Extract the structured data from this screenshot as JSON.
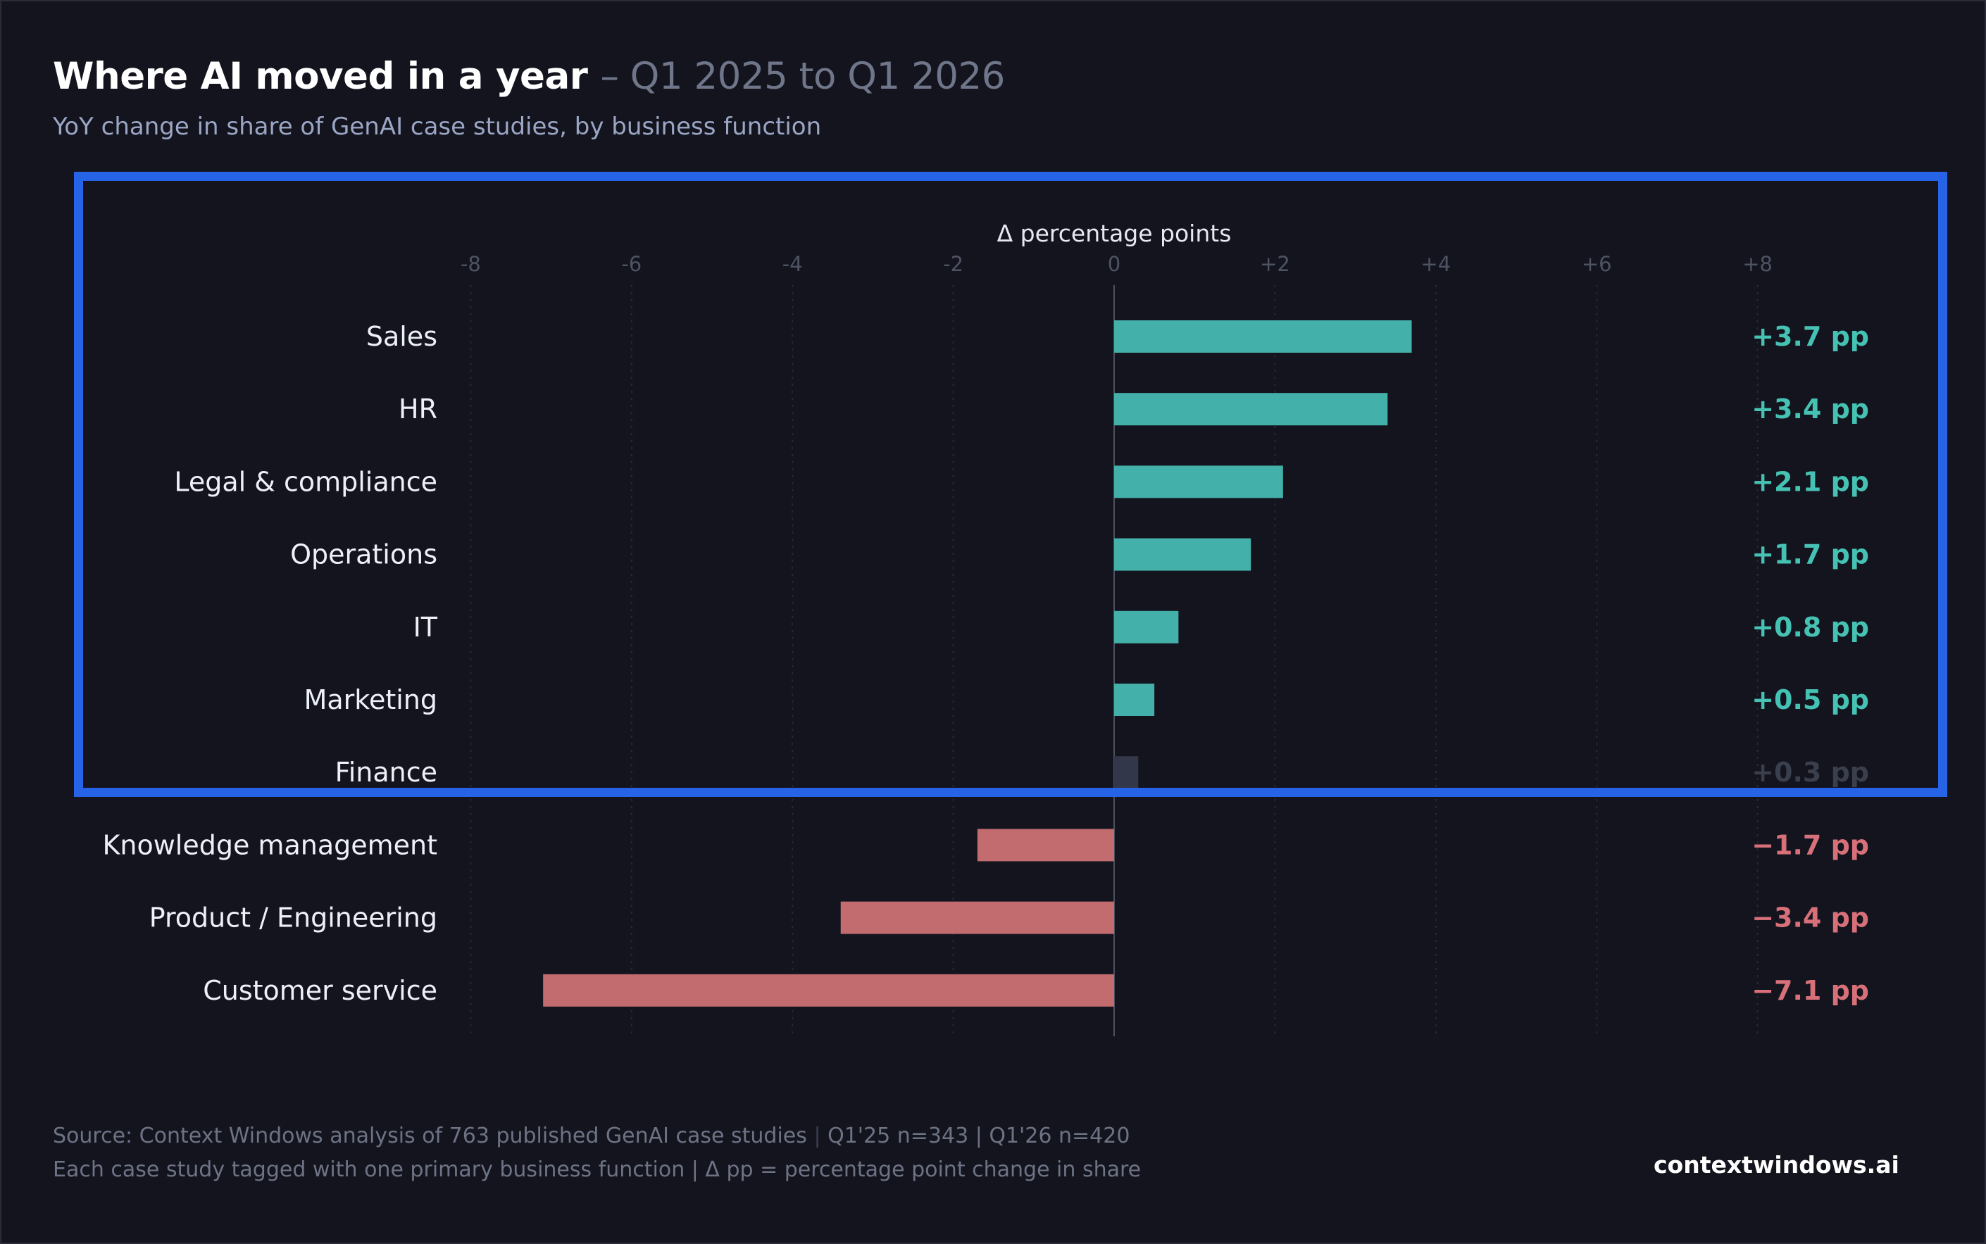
{
  "header": {
    "title_main": "Where AI moved in a year",
    "title_sub": "– Q1 2025 to Q1 2026",
    "subtitle": "YoY change in share of GenAI case studies, by business function"
  },
  "footer": {
    "source_main": "Source: Context Windows analysis of 763 published GenAI case studies",
    "source_sep": "|",
    "source_counts": "Q1'25 n=343 | Q1'26 n=420",
    "note": "Each case study tagged with one primary business function | Δ pp = percentage point change in share",
    "brand": "contextwindows.ai"
  },
  "colors": {
    "positive": "#44b0aa",
    "negative": "#c26c6f",
    "muted_bar": "#323849",
    "positive_label": "#45c2b3",
    "negative_label": "#d8707a",
    "muted_label": "#3a3f4e",
    "highlight": "#2763e6"
  },
  "chart_data": {
    "type": "bar",
    "orientation": "horizontal",
    "axis_title": "Δ percentage points",
    "xlim": [
      -8,
      8
    ],
    "xticks": [
      -8,
      -6,
      -4,
      -2,
      0,
      2,
      4,
      6,
      8
    ],
    "xtick_labels": [
      "-8",
      "-6",
      "-4",
      "-2",
      "0",
      "+2",
      "+4",
      "+6",
      "+8"
    ],
    "categories": [
      "Sales",
      "HR",
      "Legal & compliance",
      "Operations",
      "IT",
      "Marketing",
      "Finance",
      "Knowledge management",
      "Product / Engineering",
      "Customer service"
    ],
    "values": [
      3.7,
      3.4,
      2.1,
      1.7,
      0.8,
      0.5,
      0.3,
      -1.7,
      -3.4,
      -7.1
    ],
    "value_labels": [
      "+3.7 pp",
      "+3.4 pp",
      "+2.1 pp",
      "+1.7 pp",
      "+0.8 pp",
      "+0.5 pp",
      "+0.3 pp",
      "−1.7 pp",
      "−3.4 pp",
      "−7.1 pp"
    ],
    "muted": [
      false,
      false,
      false,
      false,
      false,
      false,
      true,
      false,
      false,
      false
    ],
    "grid": true,
    "highlighted_categories": [
      "Sales",
      "HR",
      "Legal & compliance",
      "Operations",
      "IT",
      "Marketing",
      "Finance"
    ]
  }
}
